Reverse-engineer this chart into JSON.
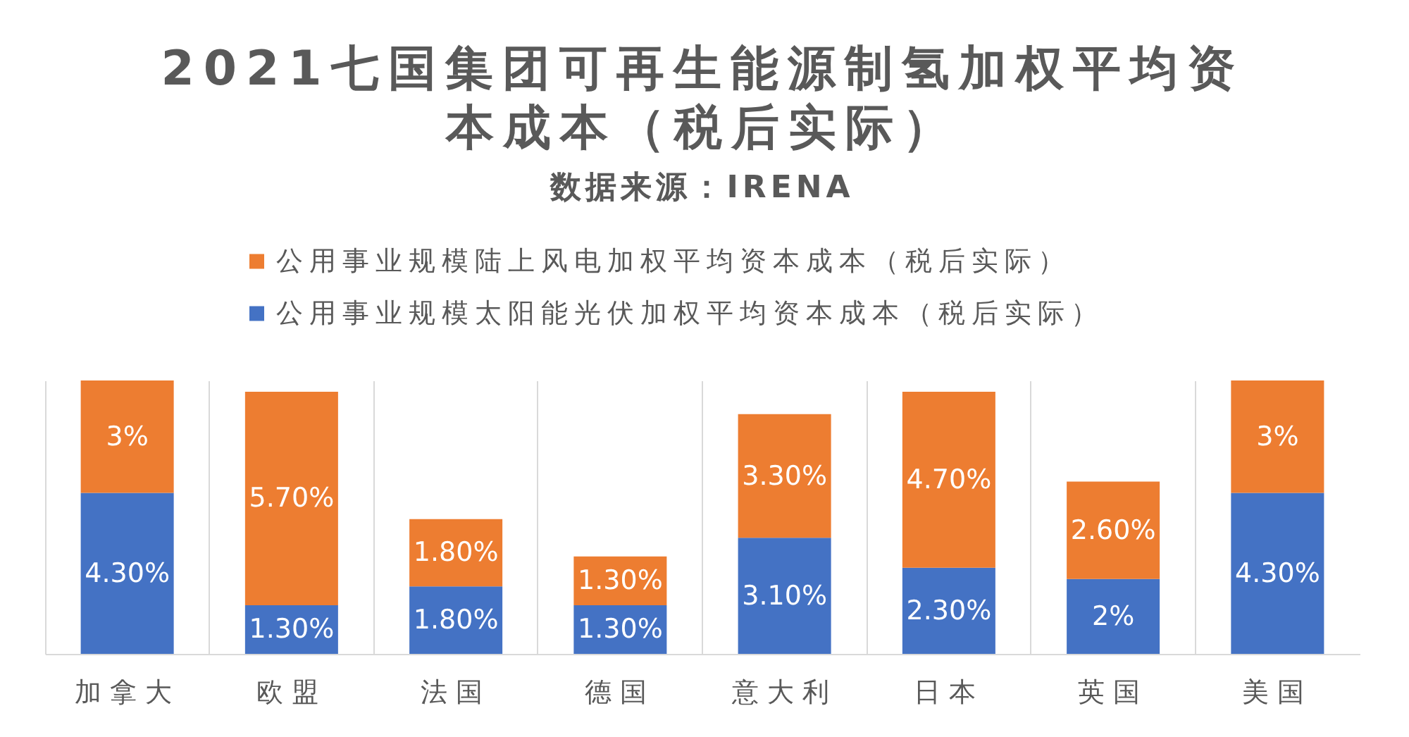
{
  "chart_data": {
    "type": "bar",
    "title": "2021七国集团可再生能源制氢加权平均资本成本（税后实际）",
    "subtitle": "数据来源：IRENA",
    "categories": [
      "加拿大",
      "欧盟",
      "法国",
      "德国",
      "意大利",
      "日本",
      "英国",
      "美国"
    ],
    "stacked": true,
    "series": [
      {
        "name": "公用事业规模太阳能光伏加权平均资本成本（税后实际）",
        "color": "#4472c4",
        "values": [
          4.3,
          1.3,
          1.8,
          1.3,
          3.1,
          2.3,
          2,
          4.3
        ],
        "value_labels": [
          "4.30%",
          "1.30%",
          "1.80%",
          "1.30%",
          "3.10%",
          "2.30%",
          "2%",
          "4.30%"
        ]
      },
      {
        "name": "公用事业规模陆上风电加权平均资本成本（税后实际）",
        "color": "#ed7d31",
        "values": [
          3,
          5.7,
          1.8,
          1.3,
          3.3,
          4.7,
          2.6,
          3
        ],
        "value_labels": [
          "3%",
          "5.70%",
          "1.80%",
          "1.30%",
          "3.30%",
          "4.70%",
          "2.60%",
          "3%"
        ]
      }
    ],
    "legend": "top",
    "grid": "x"
  }
}
